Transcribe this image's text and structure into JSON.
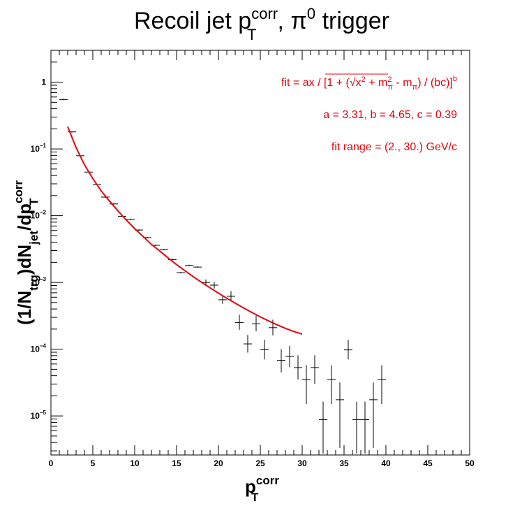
{
  "chart_data": {
    "type": "scatter",
    "title": {
      "main": "Recoil jet p",
      "sup": "corr",
      "sub": "T",
      "tail": ", π",
      "tail_sup": "0",
      "end": " trigger"
    },
    "xlabel": {
      "main": "p",
      "sup": "corr",
      "sub": "T"
    },
    "ylabel": {
      "p1": "(1/N",
      "s1": "trg",
      "p2": ")dN",
      "s2": "jet",
      "p3": "/dp",
      "sup3": "corr",
      "sub3": "T"
    },
    "xlim": [
      0,
      50
    ],
    "ylim": [
      2.6e-06,
      3.0
    ],
    "log_y": true,
    "grid": false,
    "x_tick_labels": [
      "0",
      "5",
      "10",
      "15",
      "20",
      "25",
      "30",
      "35",
      "40",
      "45",
      "50"
    ],
    "y_tick_labels": [
      {
        "v": 1,
        "text": "1",
        "exp": ""
      },
      {
        "v": 0.1,
        "text": "10",
        "exp": "−1"
      },
      {
        "v": 0.01,
        "text": "10",
        "exp": "−2"
      },
      {
        "v": 0.001,
        "text": "10",
        "exp": "−3"
      },
      {
        "v": 0.0001,
        "text": "10",
        "exp": "−4"
      },
      {
        "v": 1e-05,
        "text": "10",
        "exp": "−5"
      }
    ],
    "data_series": {
      "name": "data",
      "color": "#000000",
      "points": [
        {
          "x": 1.5,
          "y": 0.55,
          "ylo": 0.55,
          "yhi": 0.55
        },
        {
          "x": 2.5,
          "y": 0.18,
          "ylo": 0.18,
          "yhi": 0.18
        },
        {
          "x": 3.5,
          "y": 0.079,
          "ylo": 0.079,
          "yhi": 0.079
        },
        {
          "x": 4.5,
          "y": 0.045,
          "ylo": 0.045,
          "yhi": 0.045
        },
        {
          "x": 5.5,
          "y": 0.029,
          "ylo": 0.029,
          "yhi": 0.029
        },
        {
          "x": 6.5,
          "y": 0.019,
          "ylo": 0.019,
          "yhi": 0.019
        },
        {
          "x": 7.5,
          "y": 0.015,
          "ylo": 0.015,
          "yhi": 0.015
        },
        {
          "x": 8.5,
          "y": 0.0098,
          "ylo": 0.0098,
          "yhi": 0.0098
        },
        {
          "x": 9.5,
          "y": 0.0088,
          "ylo": 0.0088,
          "yhi": 0.0088
        },
        {
          "x": 10.5,
          "y": 0.0061,
          "ylo": 0.0061,
          "yhi": 0.0061
        },
        {
          "x": 11.5,
          "y": 0.0047,
          "ylo": 0.0047,
          "yhi": 0.0047
        },
        {
          "x": 12.5,
          "y": 0.0036,
          "ylo": 0.0036,
          "yhi": 0.0036
        },
        {
          "x": 13.5,
          "y": 0.0031,
          "ylo": 0.0031,
          "yhi": 0.0031
        },
        {
          "x": 14.5,
          "y": 0.0022,
          "ylo": 0.0022,
          "yhi": 0.0022
        },
        {
          "x": 15.5,
          "y": 0.0014,
          "ylo": 0.0014,
          "yhi": 0.0014
        },
        {
          "x": 16.5,
          "y": 0.0018,
          "ylo": 0.0018,
          "yhi": 0.0018
        },
        {
          "x": 17.5,
          "y": 0.0017,
          "ylo": 0.0017,
          "yhi": 0.0017
        },
        {
          "x": 18.5,
          "y": 0.001,
          "ylo": 0.00093,
          "yhi": 0.00108
        },
        {
          "x": 19.5,
          "y": 0.00091,
          "ylo": 0.00083,
          "yhi": 0.00099
        },
        {
          "x": 20.5,
          "y": 0.00055,
          "ylo": 0.00049,
          "yhi": 0.00062
        },
        {
          "x": 21.5,
          "y": 0.00062,
          "ylo": 0.00054,
          "yhi": 0.00072
        },
        {
          "x": 22.5,
          "y": 0.00025,
          "ylo": 0.0002,
          "yhi": 0.00032
        },
        {
          "x": 23.5,
          "y": 0.00012,
          "ylo": 9.1e-05,
          "yhi": 0.00016
        },
        {
          "x": 24.5,
          "y": 0.00024,
          "ylo": 0.00019,
          "yhi": 0.00031
        },
        {
          "x": 25.5,
          "y": 9.8e-05,
          "ylo": 7.2e-05,
          "yhi": 0.000135
        },
        {
          "x": 26.5,
          "y": 0.00021,
          "ylo": 0.000165,
          "yhi": 0.00027
        },
        {
          "x": 27.5,
          "y": 6.8e-05,
          "ylo": 4.6e-05,
          "yhi": 9.8e-05
        },
        {
          "x": 28.5,
          "y": 7.8e-05,
          "ylo": 5.5e-05,
          "yhi": 0.000109
        },
        {
          "x": 29.5,
          "y": 5.3e-05,
          "ylo": 3.6e-05,
          "yhi": 7.9e-05
        },
        {
          "x": 30.5,
          "y": 3.5e-05,
          "ylo": 1.55e-05,
          "yhi": 5.6e-05
        },
        {
          "x": 31.5,
          "y": 5.3e-05,
          "ylo": 3.1e-05,
          "yhi": 7.9e-05
        },
        {
          "x": 32.5,
          "y": 8.8e-06,
          "ylo": 2.8e-06,
          "yhi": 1.6e-05
        },
        {
          "x": 33.5,
          "y": 3.5e-05,
          "ylo": 1.55e-05,
          "yhi": 5.6e-05
        },
        {
          "x": 34.5,
          "y": 1.75e-05,
          "ylo": 3.4e-06,
          "yhi": 3.1e-05
        },
        {
          "x": 35.5,
          "y": 9.75e-05,
          "ylo": 7.2e-05,
          "yhi": 0.000135
        },
        {
          "x": 36.5,
          "y": 8.8e-06,
          "ylo": 2.8e-06,
          "yhi": 1.6e-05
        },
        {
          "x": 37.5,
          "y": 8.8e-06,
          "ylo": 2.8e-06,
          "yhi": 1.6e-05
        },
        {
          "x": 38.5,
          "y": 1.75e-05,
          "ylo": 3.4e-06,
          "yhi": 3.1e-05
        },
        {
          "x": 39.5,
          "y": 3.5e-05,
          "ylo": 1.55e-05,
          "yhi": 5.6e-05
        }
      ]
    },
    "fit_series": {
      "name": "fit",
      "color": "#e8000b",
      "x_range": [
        2.0,
        30.0
      ],
      "points": [
        {
          "x": 2.0,
          "y": 0.215
        },
        {
          "x": 3.0,
          "y": 0.105
        },
        {
          "x": 4.0,
          "y": 0.058
        },
        {
          "x": 5.0,
          "y": 0.036
        },
        {
          "x": 6.0,
          "y": 0.0235
        },
        {
          "x": 7.0,
          "y": 0.0165
        },
        {
          "x": 8.0,
          "y": 0.0118
        },
        {
          "x": 9.0,
          "y": 0.0086
        },
        {
          "x": 10.0,
          "y": 0.0064
        },
        {
          "x": 11.0,
          "y": 0.0049
        },
        {
          "x": 12.0,
          "y": 0.0037
        },
        {
          "x": 13.0,
          "y": 0.00295
        },
        {
          "x": 14.0,
          "y": 0.00232
        },
        {
          "x": 15.0,
          "y": 0.00185
        },
        {
          "x": 16.0,
          "y": 0.0015
        },
        {
          "x": 17.0,
          "y": 0.00122
        },
        {
          "x": 18.0,
          "y": 0.001
        },
        {
          "x": 19.0,
          "y": 0.00083
        },
        {
          "x": 20.0,
          "y": 0.00069
        },
        {
          "x": 21.0,
          "y": 0.00058
        },
        {
          "x": 22.0,
          "y": 0.00049
        },
        {
          "x": 23.0,
          "y": 0.000415
        },
        {
          "x": 24.0,
          "y": 0.000355
        },
        {
          "x": 25.0,
          "y": 0.000305
        },
        {
          "x": 26.0,
          "y": 0.000265
        },
        {
          "x": 27.0,
          "y": 0.000232
        },
        {
          "x": 28.0,
          "y": 0.000205
        },
        {
          "x": 29.0,
          "y": 0.000184
        },
        {
          "x": 30.0,
          "y": 0.000168
        }
      ]
    },
    "annotations": {
      "fit_formula": {
        "lead": "fit = ax / [1 + (",
        "under_root_a": "x",
        "under_root_a_sup": "2",
        "under_root_b": " + m",
        "under_root_b_sup": "2",
        "under_root_b_sub": "π",
        "after_root": " - m",
        "after_root_sub": "π",
        "close": ") / (bc)]",
        "close_sup": "b"
      },
      "params": "a = 3.31, b = 4.65, c = 0.39",
      "fit_range": "fit range = (2., 30.) GeV/c"
    }
  }
}
